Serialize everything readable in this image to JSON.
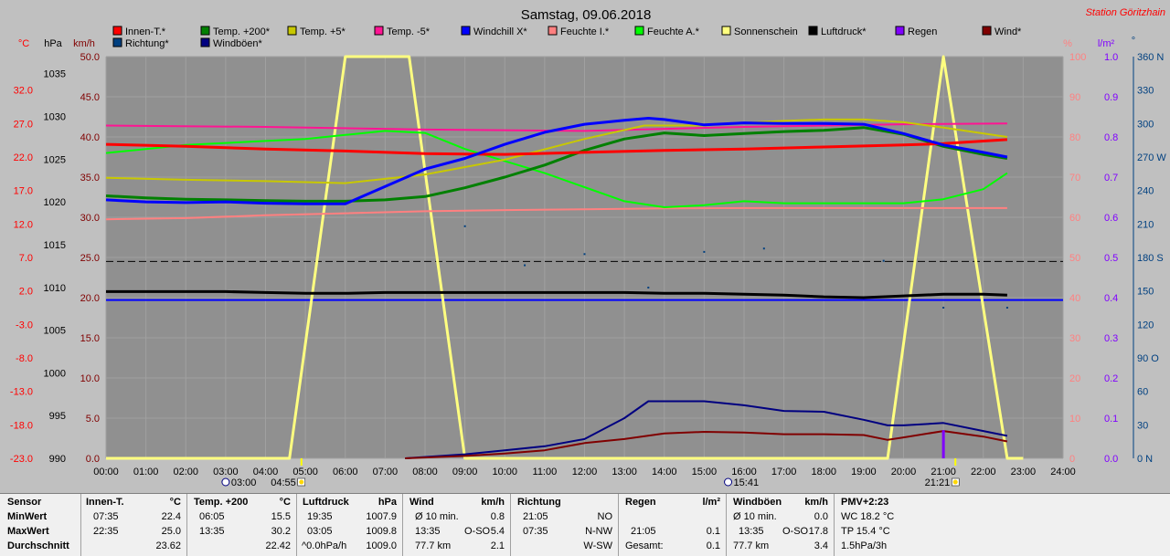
{
  "chart_data": {
    "type": "line",
    "title": "Samstag, 09.06.2018",
    "station": "Station Göritzhain",
    "axis_units": {
      "c": "°C",
      "hpa": "hPa",
      "kmh": "km/h",
      "pct": "%",
      "lm2": "l/m²",
      "deg": "°"
    },
    "x_ticks": [
      "00:00",
      "01:00",
      "02:00",
      "03:00",
      "04:00",
      "05:00",
      "06:00",
      "07:00",
      "08:00",
      "09:00",
      "10:00",
      "11:00",
      "12:00",
      "13:00",
      "14:00",
      "15:00",
      "16:00",
      "17:00",
      "18:00",
      "19:00",
      "20:00",
      "21:00",
      "22:00",
      "23:00",
      "24:00"
    ],
    "xlim": [
      0,
      24
    ],
    "y_axes": {
      "celsius": {
        "ylim": [
          -23,
          37
        ],
        "ticks": [
          "32.0",
          "27.0",
          "22.0",
          "17.0",
          "12.0",
          "7.0",
          "2.0",
          "-3.0",
          "-8.0",
          "-13.0",
          "-18.0",
          "-23.0"
        ]
      },
      "hpa": {
        "ylim": [
          990,
          1037
        ],
        "ticks": [
          "1035",
          "1030",
          "1025",
          "1020",
          "1015",
          "1010",
          "1005",
          "1000",
          "995",
          "990"
        ]
      },
      "kmh": {
        "ylim": [
          0,
          50
        ],
        "ticks": [
          "50.0",
          "45.0",
          "40.0",
          "35.0",
          "30.0",
          "25.0",
          "20.0",
          "15.0",
          "10.0",
          "5.0",
          "0.0"
        ]
      },
      "percent": {
        "ylim": [
          0,
          100
        ],
        "ticks": [
          "100",
          "90",
          "80",
          "70",
          "60",
          "50",
          "40",
          "30",
          "20",
          "10",
          "0"
        ]
      },
      "lm2": {
        "ylim": [
          0,
          1.0
        ],
        "ticks": [
          "1.0",
          "0.9",
          "0.8",
          "0.7",
          "0.6",
          "0.5",
          "0.4",
          "0.3",
          "0.2",
          "0.1",
          "0.0"
        ]
      },
      "direction": {
        "ylim": [
          0,
          360
        ],
        "ticks": [
          "360 N",
          "330",
          "300",
          "270 W",
          "240",
          "210",
          "180 S",
          "150",
          "120",
          "90 O",
          "60",
          "30",
          "0 N"
        ]
      }
    },
    "legend": [
      {
        "name": "Innen-T.*",
        "color": "#ff0000"
      },
      {
        "name": "Temp. +200*",
        "color": "#008000"
      },
      {
        "name": "Temp. +5*",
        "color": "#c8c800"
      },
      {
        "name": "Temp. -5*",
        "color": "#ff1493"
      },
      {
        "name": "Windchill X*",
        "color": "#0000ff"
      },
      {
        "name": "Feuchte I.*",
        "color": "#ff8080"
      },
      {
        "name": "Feuchte A.*",
        "color": "#00ff00"
      },
      {
        "name": "Sonnenschein",
        "color": "#ffff80"
      },
      {
        "name": "Luftdruck*",
        "color": "#000000"
      },
      {
        "name": "Regen",
        "color": "#8000ff"
      },
      {
        "name": "Wind*",
        "color": "#800000"
      },
      {
        "name": "Richtung*",
        "color": "#004080"
      },
      {
        "name": "Windböen*",
        "color": "#000080"
      }
    ],
    "series": [
      {
        "name": "Innen-T.*",
        "axis": "celsius",
        "color": "#ff0000",
        "width": 3,
        "x": [
          0,
          2,
          4,
          6,
          8,
          10,
          12,
          14,
          16,
          18,
          20,
          21,
          22.6
        ],
        "y": [
          23.9,
          23.6,
          23.2,
          22.9,
          22.5,
          22.4,
          22.7,
          23.0,
          23.2,
          23.5,
          23.8,
          24.0,
          24.6
        ]
      },
      {
        "name": "Temp. +200*",
        "axis": "celsius",
        "color": "#008000",
        "width": 3,
        "x": [
          0,
          1,
          2,
          3,
          4,
          5,
          6,
          7,
          8,
          9,
          10,
          11,
          12,
          13,
          14,
          15,
          16,
          17,
          18,
          19,
          20,
          21,
          22,
          22.6
        ],
        "y": [
          16.2,
          15.9,
          15.7,
          15.6,
          15.5,
          15.4,
          15.4,
          15.6,
          16.1,
          17.4,
          19.0,
          20.8,
          23.0,
          24.7,
          25.6,
          25.2,
          25.5,
          25.8,
          26.0,
          26.4,
          25.4,
          23.6,
          22.4,
          21.8
        ]
      },
      {
        "name": "Temp. +5*",
        "axis": "celsius",
        "color": "#c8c800",
        "width": 2,
        "x": [
          0,
          2,
          4,
          6,
          8,
          10,
          12,
          13.5,
          15,
          16,
          17,
          18,
          19,
          20,
          21,
          22.6
        ],
        "y": [
          18.9,
          18.6,
          18.4,
          18.1,
          19.4,
          21.6,
          24.7,
          26.7,
          26.7,
          27.1,
          27.4,
          27.6,
          27.6,
          27.2,
          26.4,
          25.0
        ]
      },
      {
        "name": "Temp. -5*",
        "axis": "celsius",
        "color": "#ff1493",
        "width": 2,
        "x": [
          0,
          4,
          8,
          12,
          16,
          20,
          22.6
        ],
        "y": [
          26.7,
          26.5,
          26.1,
          25.9,
          26.5,
          26.9,
          27.0
        ]
      },
      {
        "name": "Windchill X*",
        "axis": "celsius",
        "color": "#0000ff",
        "width": 3,
        "x": [
          0,
          1,
          2,
          3,
          4,
          5,
          6,
          7,
          8,
          9,
          10,
          11,
          12,
          13,
          13.6,
          14,
          15,
          16,
          17,
          18,
          19,
          20,
          21,
          22,
          22.6
        ],
        "y": [
          15.6,
          15.3,
          15.2,
          15.3,
          15.1,
          15.0,
          15.0,
          17.6,
          20.2,
          21.8,
          23.9,
          25.7,
          26.9,
          27.5,
          27.8,
          27.6,
          26.8,
          27.1,
          27.0,
          27.0,
          26.9,
          25.5,
          23.8,
          22.7,
          22.0
        ]
      },
      {
        "name": "Feuchte I.*",
        "axis": "percent",
        "color": "#ff8080",
        "width": 2,
        "x": [
          0,
          2,
          4,
          6,
          8,
          10,
          12,
          14,
          16,
          18,
          20,
          21,
          22.6
        ],
        "y": [
          59.5,
          59.8,
          60.5,
          61.0,
          61.5,
          61.8,
          62.0,
          62.2,
          62.3,
          62.3,
          62.3,
          62.3,
          62.3
        ]
      },
      {
        "name": "Feuchte A.*",
        "axis": "percent",
        "color": "#00ff00",
        "width": 2,
        "x": [
          0,
          1,
          2,
          3,
          4,
          5,
          6,
          7,
          8,
          9,
          10,
          11,
          12,
          13,
          14,
          15,
          16,
          17,
          18,
          19,
          20,
          21,
          22,
          22.6
        ],
        "y": [
          76.0,
          77.0,
          78.0,
          78.5,
          79.0,
          79.5,
          80.5,
          81.5,
          81.0,
          77.0,
          74.0,
          71.0,
          67.5,
          64.0,
          62.5,
          63.0,
          64.0,
          63.5,
          63.5,
          63.5,
          63.5,
          64.5,
          67.0,
          71.0
        ]
      },
      {
        "name": "Sonnenschein",
        "axis": "percent",
        "color": "#ffff80",
        "width": 3,
        "x": [
          0,
          4.6,
          6.0,
          7.6,
          9.0,
          19.6,
          21.0,
          22.6,
          23.0
        ],
        "y": [
          0,
          0,
          100,
          100,
          0,
          0,
          100,
          0,
          0
        ]
      },
      {
        "name": "Luftdruck*",
        "axis": "hpa",
        "color": "#000000",
        "width": 3,
        "x": [
          0,
          1,
          2,
          3,
          4,
          5,
          6,
          7,
          8,
          9,
          10,
          11,
          12,
          13,
          14,
          15,
          16,
          17,
          18,
          19,
          20,
          21,
          22,
          22.6
        ],
        "y": [
          1009.5,
          1009.5,
          1009.5,
          1009.5,
          1009.4,
          1009.3,
          1009.3,
          1009.4,
          1009.4,
          1009.4,
          1009.4,
          1009.4,
          1009.4,
          1009.4,
          1009.3,
          1009.3,
          1009.2,
          1009.1,
          1008.9,
          1008.8,
          1009.0,
          1009.2,
          1009.2,
          1009.1
        ]
      },
      {
        "name": "Windböen*",
        "axis": "kmh",
        "color": "#000080",
        "width": 2,
        "x": [
          7.5,
          9,
          10,
          11,
          12,
          13,
          13.6,
          14,
          15,
          16,
          17,
          18,
          19,
          19.6,
          20,
          21,
          22,
          22.6
        ],
        "y": [
          0,
          0.5,
          1.0,
          1.5,
          2.4,
          5.0,
          7.1,
          7.1,
          7.1,
          6.6,
          5.9,
          5.8,
          4.8,
          4.1,
          4.1,
          4.4,
          3.4,
          2.8
        ]
      },
      {
        "name": "Wind*",
        "axis": "kmh",
        "color": "#800000",
        "width": 2,
        "x": [
          7.5,
          9,
          10,
          11,
          12,
          13,
          14,
          15,
          16,
          17,
          18,
          19,
          19.6,
          20,
          21,
          22,
          22.6
        ],
        "y": [
          0,
          0.3,
          0.6,
          1.0,
          1.9,
          2.4,
          3.1,
          3.3,
          3.2,
          3.0,
          3.0,
          2.9,
          2.3,
          2.6,
          3.4,
          2.7,
          2.1
        ]
      }
    ],
    "richtung_points": {
      "x": [
        9.0,
        10.5,
        12.0,
        13.6,
        15.0,
        16.5,
        19.5,
        21.0,
        22.6
      ],
      "y": [
        208,
        173,
        183,
        153,
        185,
        188,
        177,
        135,
        135
      ]
    },
    "regen_bars": {
      "x": [
        21.0
      ],
      "y": [
        0.07
      ]
    },
    "blue_flat_line": {
      "y": 39.4,
      "color": "#0000ff"
    },
    "dashed_line": {
      "y": 24.5
    },
    "annotations": {
      "sunrise_time": "03:00",
      "sunrise_label": "04:55",
      "sunset_time": "15:41",
      "sunset_label": "21:21"
    }
  },
  "stats": {
    "sensor": {
      "title": "Sensor",
      "rows": [
        "MinWert",
        "MaxWert",
        "Durchschnitt"
      ]
    },
    "innen": {
      "title": "Innen-T.",
      "unit": "°C",
      "times": [
        "07:35",
        "22:35",
        ""
      ],
      "values": [
        "22.4",
        "25.0",
        "23.62"
      ]
    },
    "temp200": {
      "title": "Temp. +200",
      "unit": "°C",
      "times": [
        "06:05",
        "13:35",
        ""
      ],
      "values": [
        "15.5",
        "30.2",
        "22.42"
      ]
    },
    "luftdruck": {
      "title": "Luftdruck",
      "unit": "hPa",
      "times": [
        "19:35",
        "03:05",
        "^0.0hPa/h"
      ],
      "values": [
        "1007.9",
        "1009.8",
        "1009.0"
      ]
    },
    "wind": {
      "title": "Wind",
      "unit": "km/h",
      "labels": [
        "Ø 10 min.",
        "13:35",
        "77.7 km"
      ],
      "dirs": [
        "",
        "O-SO",
        ""
      ],
      "values": [
        "0.8",
        "5.4",
        "2.1"
      ]
    },
    "richtung": {
      "title": "Richtung",
      "times": [
        "21:05",
        "07:35",
        ""
      ],
      "values": [
        "NO",
        "N-NW",
        "W-SW"
      ]
    },
    "regen": {
      "title": "Regen",
      "unit": "l/m²",
      "times": [
        "",
        "21:05",
        "Gesamt:"
      ],
      "values": [
        "",
        "0.1",
        "0.1"
      ]
    },
    "windboeen": {
      "title": "Windböen",
      "unit": "km/h",
      "labels": [
        "Ø 10 min.",
        "13:35",
        "77.7 km"
      ],
      "dirs": [
        "",
        "O-SO",
        ""
      ],
      "values": [
        "0.0",
        "17.8",
        "3.4"
      ]
    },
    "pmv": {
      "title": "PMV+2:23",
      "lines": [
        "WC 18.2 °C",
        "TP 15.4 °C",
        "1.5hPa/3h"
      ]
    }
  }
}
